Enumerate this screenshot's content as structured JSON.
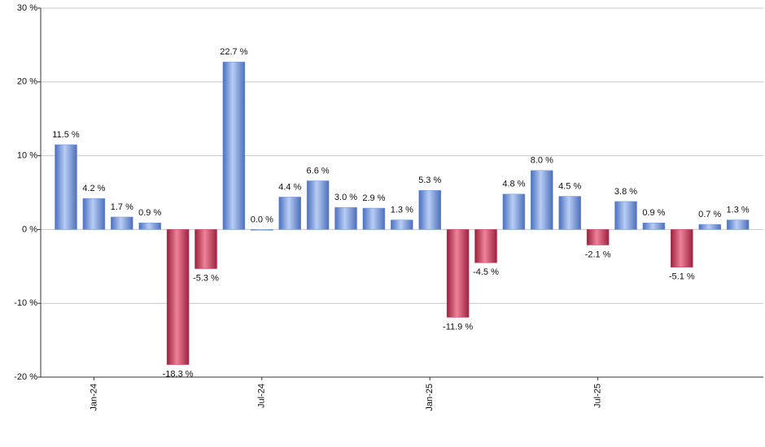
{
  "chart_data": {
    "type": "bar",
    "categories": [
      null,
      "Jan-24",
      null,
      null,
      null,
      null,
      null,
      "Jul-24",
      null,
      null,
      null,
      null,
      null,
      "Jan-25",
      null,
      null,
      null,
      null,
      null,
      "Jul-25",
      null,
      null,
      null,
      null,
      null
    ],
    "values": [
      11.5,
      4.2,
      1.7,
      0.9,
      -18.3,
      -5.3,
      22.7,
      0.0,
      4.4,
      6.6,
      3.0,
      2.9,
      1.3,
      5.3,
      -11.9,
      -4.5,
      4.8,
      8.0,
      4.5,
      -2.1,
      3.8,
      0.9,
      -5.1,
      0.7,
      1.3
    ],
    "value_labels": [
      "11.5 %",
      "4.2 %",
      "1.7 %",
      "0.9 %",
      "-18.3 %",
      "-5.3 %",
      "22.7 %",
      "0.0 %",
      "4.4 %",
      "6.6 %",
      "3.0 %",
      "2.9 %",
      "1.3 %",
      "5.3 %",
      "-11.9 %",
      "-4.5 %",
      "4.8 %",
      "8.0 %",
      "4.5 %",
      "-2.1 %",
      "3.8 %",
      "0.9 %",
      "-5.1 %",
      "0.7 %",
      "1.3 %"
    ],
    "positive_color": "#7096dc",
    "negative_color": "#c8395a",
    "ylim": [
      -20,
      30
    ],
    "yticks": [
      {
        "value": -20,
        "label": "-20 %"
      },
      {
        "value": -10,
        "label": "-10 %"
      },
      {
        "value": 0,
        "label": "0 %"
      },
      {
        "value": 10,
        "label": "10 %"
      },
      {
        "value": 20,
        "label": "20 %"
      },
      {
        "value": 30,
        "label": "30 %"
      }
    ],
    "grid": true
  }
}
